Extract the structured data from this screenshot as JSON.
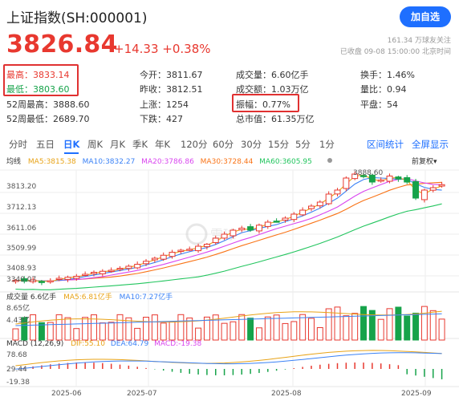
{
  "header": {
    "title": "上证指数(SH:000001)",
    "add_button": "加自选",
    "price": "3826.84",
    "change": "+14.33 +0.38%",
    "fans": "161.34 万球友关注",
    "status": "已收盘 09-08 15:00:00 北京时间"
  },
  "stats": {
    "high": "最高：3833.14",
    "low": "最低：3803.60",
    "high52": "52周最高：3888.60",
    "low52": "52周最低：2689.70",
    "open": "今开：3811.67",
    "prev_close": "昨收：3812.51",
    "up": "上涨：1254",
    "down": "下跌：427",
    "volume": "成交量：6.60亿手",
    "turnover": "成交额：1.03万亿",
    "amplitude": "振幅：0.77%",
    "market_cap": "总市值：61.35万亿",
    "turnover_rate": "换手：1.46%",
    "volume_ratio": "量比：0.94",
    "flat": "平盘：54"
  },
  "tabs": [
    "分时",
    "五日",
    "日K",
    "周K",
    "月K",
    "季K",
    "年K",
    "120分",
    "60分",
    "30分",
    "15分",
    "5分",
    "1分"
  ],
  "active_tab": "日K",
  "tab_right": [
    "区间统计",
    "全屏显示"
  ],
  "chart_bar": {
    "label": "均线",
    "ma5": "MA5:3815.38",
    "ma10": "MA10:3832.27",
    "ma20": "MA20:3786.86",
    "ma30": "MA30:3728.44",
    "ma60": "MA60:3605.95",
    "adjust": "前复权"
  },
  "price_axis": [
    "3813.20",
    "3712.13",
    "3611.06",
    "3509.99",
    "3408.93",
    "3340.07"
  ],
  "peak_label": "3888.60",
  "volume_legend": {
    "label": "成交量 6.6亿手",
    "ma5": "MA5:6.81亿手",
    "ma10": "MA10:7.27亿手",
    "axis_top": "8.65亿",
    "axis_mid": "4.43亿"
  },
  "macd_legend": {
    "label": "MACD (12,26,9)",
    "dif": "DIF:55.10",
    "dea": "DEA:64.79",
    "macd": "MACD:-19.38",
    "axis_top": "78.68",
    "axis_mid": "29.44",
    "axis_bot": "-19.38"
  },
  "date_axis": [
    "2025-06",
    "2025-07",
    "2025-08",
    "2025-09"
  ],
  "watermark": "雪球",
  "colors": {
    "up": "#e8382f",
    "down": "#16a34a",
    "ma5": "#e8a317",
    "ma10": "#3b82f6",
    "ma20": "#d946ef",
    "ma30": "#f97316",
    "ma60": "#22c55e",
    "accent": "#1e6fff"
  },
  "chart_data": {
    "type": "candlestick",
    "x_range": [
      "2025-05",
      "2025-09-08"
    ],
    "y_range": [
      3320,
      3900
    ],
    "close_trend": [
      3350,
      3345,
      3352,
      3340,
      3348,
      3360,
      3365,
      3370,
      3380,
      3390,
      3395,
      3400,
      3410,
      3420,
      3430,
      3445,
      3460,
      3475,
      3490,
      3500,
      3505,
      3520,
      3530,
      3560,
      3580,
      3600,
      3610,
      3600,
      3625,
      3640,
      3645,
      3660,
      3680,
      3700,
      3720,
      3740,
      3780,
      3800,
      3860,
      3880,
      3870,
      3840,
      3850,
      3870,
      3855,
      3840,
      3760,
      3800,
      3812,
      3827
    ]
  }
}
